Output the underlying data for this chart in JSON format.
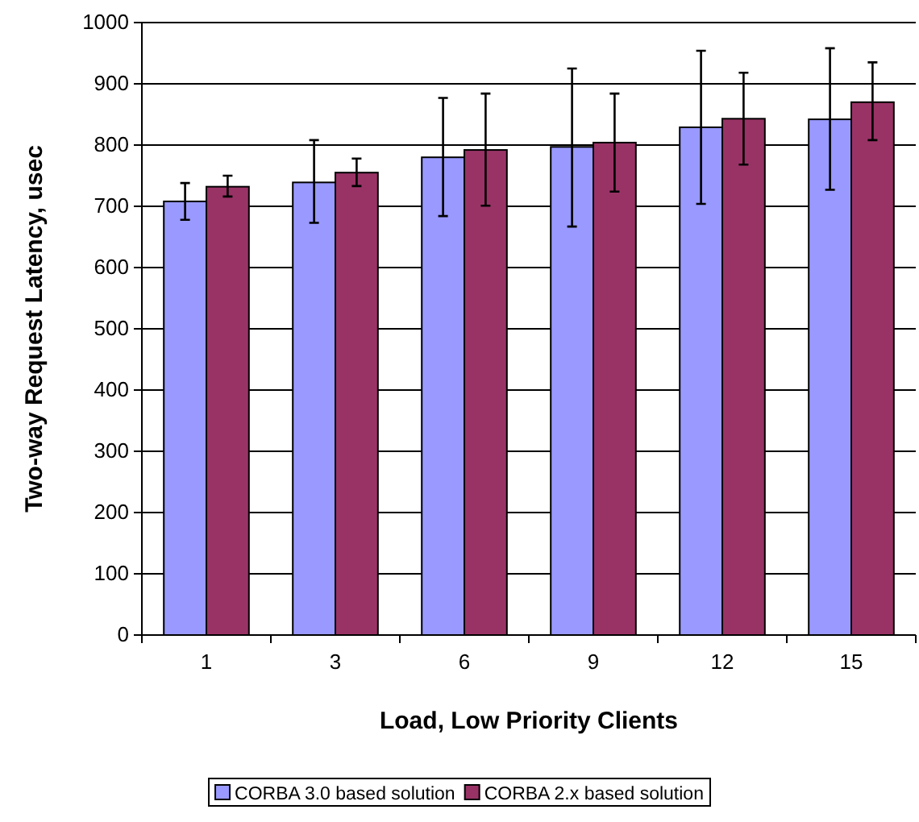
{
  "chart_data": {
    "type": "bar",
    "xlabel": "Load, Low Priority Clients",
    "ylabel": "Two-way Request Latency, usec",
    "categories": [
      "1",
      "3",
      "6",
      "9",
      "12",
      "15"
    ],
    "series": [
      {
        "name": "CORBA 3.0 based solution",
        "color": "#9999ff",
        "values": [
          708,
          739,
          780,
          797,
          829,
          842
        ],
        "errors": [
          [
            678,
            738
          ],
          [
            673,
            808
          ],
          [
            684,
            877
          ],
          [
            667,
            925
          ],
          [
            704,
            954
          ],
          [
            727,
            958
          ]
        ]
      },
      {
        "name": "CORBA 2.x based solution",
        "color": "#993366",
        "values": [
          732,
          755,
          792,
          804,
          843,
          870
        ],
        "errors": [
          [
            716,
            750
          ],
          [
            733,
            778
          ],
          [
            701,
            884
          ],
          [
            724,
            884
          ],
          [
            768,
            918
          ],
          [
            808,
            935
          ]
        ]
      }
    ],
    "ylim": [
      0,
      1000
    ],
    "yticks": [
      0,
      100,
      200,
      300,
      400,
      500,
      600,
      700,
      800,
      900,
      1000
    ],
    "grid": "y",
    "legend": "bottom"
  }
}
